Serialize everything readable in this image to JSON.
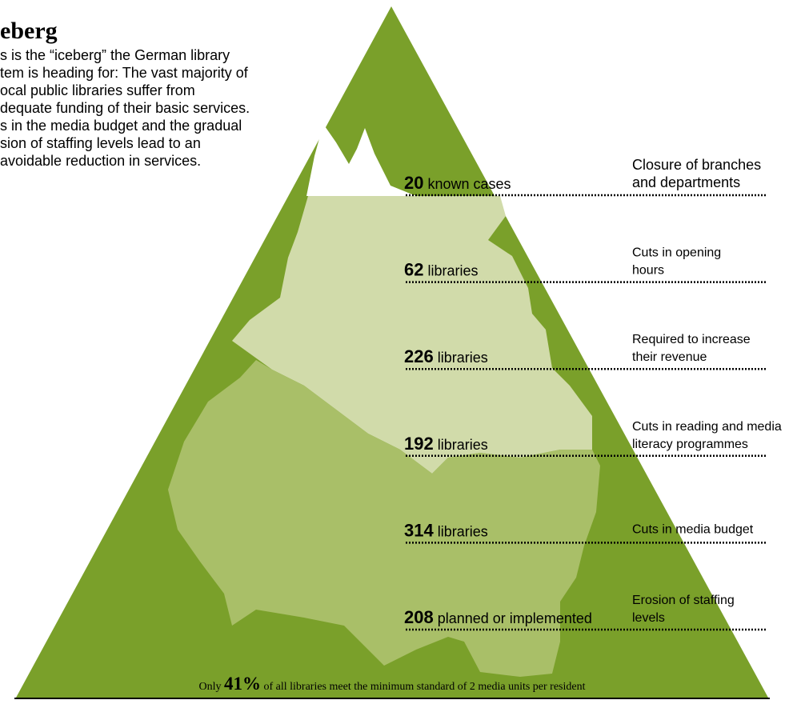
{
  "title": "eberg",
  "intro": [
    "s is the “iceberg” the German library",
    "tem is heading for: The vast majority of",
    "ocal public libraries suffer from",
    "dequate funding of their basic services.",
    "s in the media budget and the gradual",
    "sion of staffing levels lead to an",
    "avoidable reduction in services."
  ],
  "levels": [
    {
      "count": "20",
      "label": "known cases",
      "description": [
        "Closure of branches",
        "and departments"
      ]
    },
    {
      "count": "62",
      "label": "libraries",
      "description": [
        "Cuts in opening",
        "hours"
      ]
    },
    {
      "count": "226",
      "label": "libraries",
      "description": [
        "Required to increase",
        "their revenue"
      ]
    },
    {
      "count": "192",
      "label": "libraries",
      "description": [
        "Cuts in reading and media",
        "literacy programmes"
      ]
    },
    {
      "count": "314",
      "label": "libraries",
      "description": [
        "Cuts in media budget"
      ]
    },
    {
      "count": "208",
      "label": "planned or implemented",
      "description": [
        "Erosion of staffing",
        "levels"
      ]
    }
  ],
  "footer": {
    "prefix": "Only",
    "percent": "41%",
    "suffix": "of all libraries meet the minimum standard of 2 media units per resident"
  }
}
